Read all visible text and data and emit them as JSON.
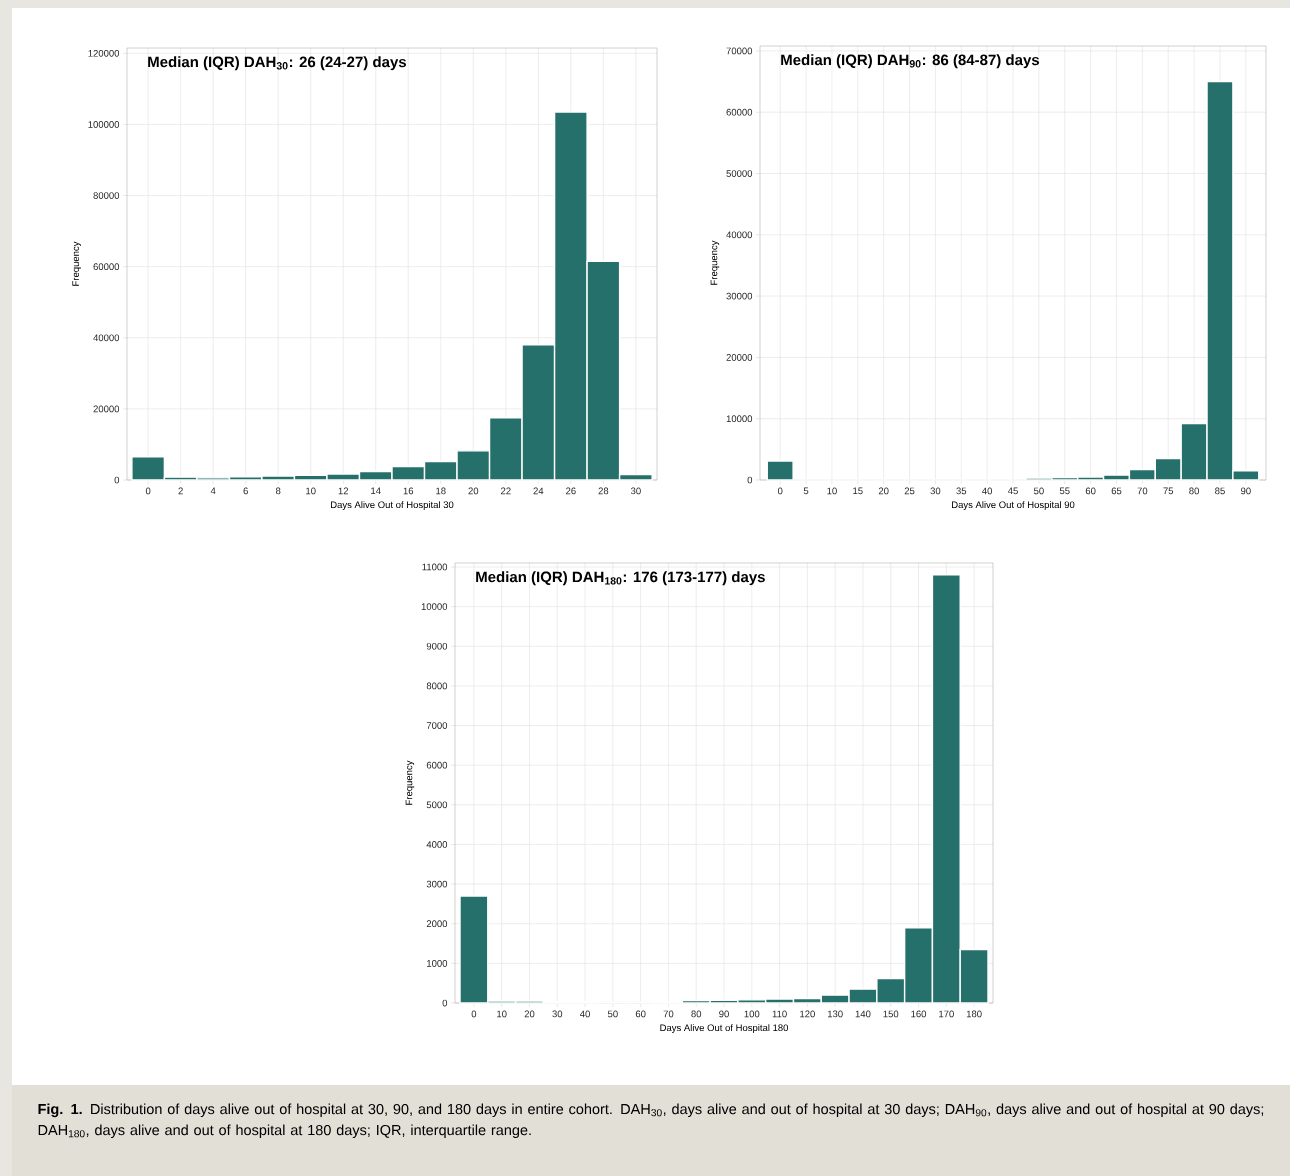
{
  "chart_data": [
    {
      "type": "histogram",
      "title": "Median (IQR) DAH$_{30}$: 26 (24-27) days",
      "xlabel": "Days Alive Out of Hospital 30",
      "ylabel": "Frequency",
      "color": "#26706c",
      "grid": true,
      "bins": [
        -1,
        1,
        3,
        5,
        7,
        9,
        11,
        13,
        15,
        17,
        19,
        21,
        23,
        25,
        27,
        29,
        31
      ],
      "values": [
        6500,
        800,
        600,
        900,
        1100,
        1300,
        1700,
        2400,
        3800,
        5200,
        8200,
        17500,
        38000,
        103500,
        61500,
        1500
      ],
      "xlim": [
        -1.3,
        31.3
      ],
      "ylim": [
        0,
        121500
      ],
      "xticks": [
        0,
        2,
        4,
        6,
        8,
        10,
        12,
        14,
        16,
        18,
        20,
        22,
        24,
        26,
        28,
        30
      ],
      "yticks": [
        0,
        20000,
        40000,
        60000,
        80000,
        100000,
        120000
      ]
    },
    {
      "type": "histogram",
      "title": "Median (IQR) DAH$_{90}$: 86 (84-87) days",
      "xlabel": "Days Alive Out of Hospital 90",
      "ylabel": "Frequency",
      "color": "#26706c",
      "grid": true,
      "bins": [
        -2.5,
        2.5,
        7.5,
        12.5,
        17.5,
        22.5,
        27.5,
        32.5,
        37.5,
        42.5,
        47.5,
        52.5,
        57.5,
        62.5,
        67.5,
        72.5,
        77.5,
        82.5,
        87.5,
        92.5
      ],
      "values": [
        3100,
        0,
        0,
        0,
        0,
        0,
        0,
        0,
        0,
        0,
        300,
        400,
        500,
        800,
        1700,
        3500,
        9200,
        65000,
        1500
      ],
      "xlim": [
        -3.9,
        93.9
      ],
      "ylim": [
        0,
        70800
      ],
      "xticks": [
        0,
        5,
        10,
        15,
        20,
        25,
        30,
        35,
        40,
        45,
        50,
        55,
        60,
        65,
        70,
        75,
        80,
        85,
        90
      ],
      "yticks": [
        0,
        10000,
        20000,
        30000,
        40000,
        50000,
        60000,
        70000
      ]
    },
    {
      "type": "histogram",
      "title": "Median (IQR) DAH$_{180}$: 176 (173-177) days",
      "xlabel": "Days Alive Out of Hospital 180",
      "ylabel": "Frequency",
      "color": "#26706c",
      "grid": true,
      "bins": [
        -5,
        5,
        15,
        25,
        35,
        45,
        55,
        65,
        75,
        85,
        95,
        105,
        115,
        125,
        135,
        145,
        155,
        165,
        175,
        185
      ],
      "values": [
        2700,
        50,
        50,
        40,
        40,
        30,
        30,
        40,
        60,
        70,
        80,
        100,
        110,
        200,
        350,
        620,
        1900,
        10800,
        1350
      ],
      "xlim": [
        -6.8,
        186.8
      ],
      "ylim": [
        0,
        11100
      ],
      "xticks": [
        0,
        10,
        20,
        30,
        40,
        50,
        60,
        70,
        80,
        90,
        100,
        110,
        120,
        130,
        140,
        150,
        160,
        170,
        180
      ],
      "yticks": [
        0,
        1000,
        2000,
        3000,
        4000,
        5000,
        6000,
        7000,
        8000,
        9000,
        10000,
        11000
      ],
      "annotations": [
        "**Fig. 1.** Distribution of days alive out of hospital at 30, 90, and 180 days in entire cohort. DAH$_{30}$, days alive and out of hospital at 30 days; DAH$_{90}$, days alive and out of hospital at 90 days; DAH$_{180}$, days alive and out of hospital at 180 days; IQR, interquartile range."
      ]
    }
  ]
}
